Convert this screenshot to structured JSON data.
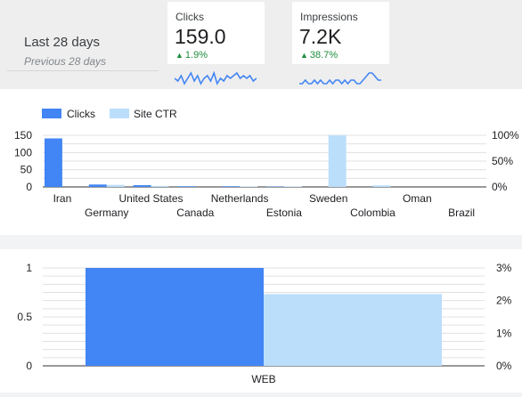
{
  "period": {
    "label": "Last 28 days",
    "compare_label": "Previous 28 days"
  },
  "kpis": [
    {
      "title": "Clicks",
      "value": "159.0",
      "delta": "1.9%",
      "trend": "up",
      "sparkline": [
        5,
        4,
        6,
        3,
        5,
        7,
        4,
        6,
        3,
        5,
        6,
        4,
        7,
        3,
        5,
        4,
        6,
        5,
        6,
        7,
        5,
        6,
        5,
        6,
        4,
        5
      ]
    },
    {
      "title": "Impressions",
      "value": "7.2K",
      "delta": "38.7%",
      "trend": "up",
      "sparkline": [
        3,
        3,
        4,
        3,
        3,
        4,
        3,
        4,
        3,
        3,
        4,
        3,
        4,
        4,
        3,
        4,
        3,
        4,
        4,
        3,
        3,
        4,
        5,
        6,
        6,
        5,
        4,
        4
      ]
    }
  ],
  "colors": {
    "clicks": "#4285f4",
    "ctr": "#bbdefb",
    "positive": "#1e8e3e"
  },
  "chart_data": [
    {
      "type": "bar",
      "legend": {
        "position": "top-left"
      },
      "categories": [
        "Iran",
        "Germany",
        "United States",
        "Canada",
        "Netherlands",
        "Estonia",
        "Sweden",
        "Colombia",
        "Oman",
        "Brazil"
      ],
      "series": [
        {
          "name": "Clicks",
          "axis": "left",
          "values": [
            141,
            7,
            5,
            2,
            2,
            1,
            0,
            0,
            0,
            0
          ]
        },
        {
          "name": "Site CTR",
          "axis": "right",
          "values": [
            0,
            4,
            2,
            0,
            1,
            1,
            100,
            3,
            0,
            0
          ]
        }
      ],
      "y_left": {
        "ticks": [
          "0",
          "50",
          "100",
          "150"
        ],
        "range": [
          0,
          150
        ]
      },
      "y_right": {
        "ticks": [
          "0%",
          "50%",
          "100%"
        ],
        "range": [
          0,
          100
        ]
      },
      "grid": true
    },
    {
      "type": "bar",
      "legend": {
        "position": "none"
      },
      "categories": [
        "WEB"
      ],
      "series": [
        {
          "name": "Clicks",
          "axis": "left",
          "values": [
            1
          ]
        },
        {
          "name": "Site CTR",
          "axis": "right",
          "values": [
            2.2
          ]
        }
      ],
      "y_left": {
        "ticks": [
          "0",
          "0.5",
          "1"
        ],
        "range": [
          0,
          1
        ]
      },
      "y_right": {
        "ticks": [
          "0%",
          "1%",
          "2%",
          "3%"
        ],
        "range": [
          0,
          3
        ]
      },
      "grid": true
    }
  ]
}
